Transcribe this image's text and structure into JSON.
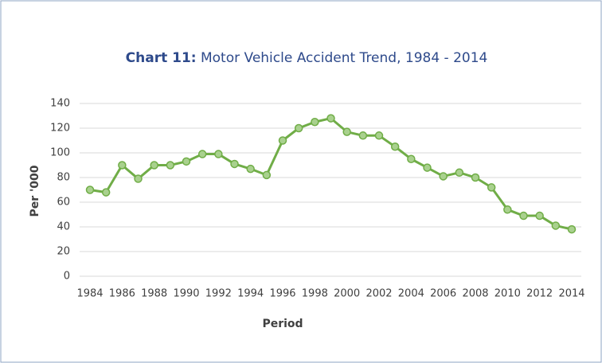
{
  "chart_data": {
    "type": "line",
    "title_label": "Chart 11:",
    "title": "Motor Vehicle Accident Trend, 1984 - 2014",
    "x_label": "Period",
    "y_label": "Per '000",
    "x": [
      1984,
      1985,
      1986,
      1987,
      1988,
      1989,
      1990,
      1991,
      1992,
      1993,
      1994,
      1995,
      1996,
      1997,
      1998,
      1999,
      2000,
      2001,
      2002,
      2003,
      2004,
      2005,
      2006,
      2007,
      2008,
      2009,
      2010,
      2011,
      2012,
      2013,
      2014
    ],
    "series": [
      {
        "color": "#70ad47",
        "values": [
          70,
          68,
          90,
          79,
          90,
          90,
          93,
          99,
          99,
          91,
          87,
          82,
          110,
          120,
          125,
          128,
          117,
          114,
          114,
          105,
          95,
          88,
          81,
          84,
          80,
          72,
          54,
          49,
          49,
          41,
          38
        ]
      }
    ],
    "xlim": [
      1984,
      2014
    ],
    "xticks": [
      1984,
      1986,
      1988,
      1990,
      1992,
      1994,
      1996,
      1998,
      2000,
      2002,
      2004,
      2006,
      2008,
      2010,
      2012,
      2014
    ],
    "ylim": [
      0,
      140
    ],
    "yticks": [
      0,
      20,
      40,
      60,
      80,
      100,
      120,
      140
    ],
    "grid": true
  }
}
